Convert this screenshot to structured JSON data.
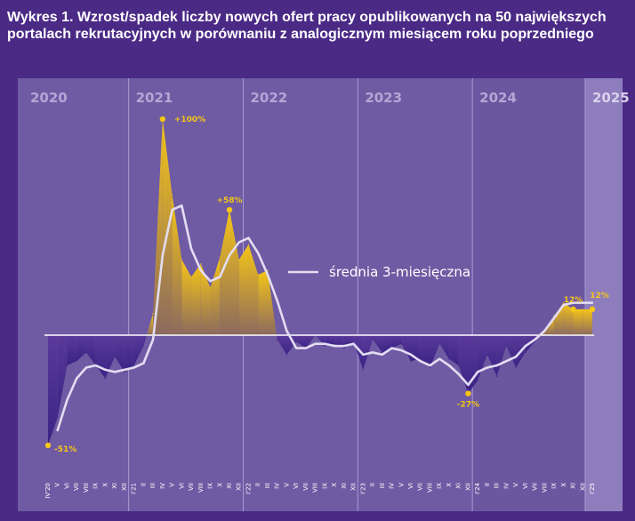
{
  "title": "Wykres 1. Wzrost/spadek liczby nowych ofert pracy opublikowanych na 50 największych portalach rekrutacyjnych w porównaniu z analogicznym miesiącem roku poprzedniego",
  "colors": {
    "background": "#4b2a86",
    "panel": "#6e5ba3",
    "panel_2025": "#8e7dbd",
    "year_text": "#b3a6d6",
    "year_text_dark": "#d9d2ec",
    "positive_fill": "#f5c518",
    "negative_fill": "#3a2384",
    "average_line": "#e3ddf2",
    "marker": "#f5c518"
  },
  "chart_data": {
    "type": "area",
    "years": [
      "2020",
      "2021",
      "2022",
      "2023",
      "2024",
      "2025"
    ],
    "x": [
      "IV'20",
      "V",
      "VI",
      "VII",
      "VIII",
      "IX",
      "X",
      "XI",
      "XII",
      "I'21",
      "II",
      "III",
      "IV",
      "V",
      "VI",
      "VII",
      "VIII",
      "IX",
      "X",
      "XI",
      "XII",
      "I'22",
      "II",
      "III",
      "IV",
      "V",
      "VI",
      "VII",
      "VIII",
      "IX",
      "X",
      "XI",
      "XII",
      "I'23",
      "II",
      "III",
      "IV",
      "V",
      "VI",
      "VII",
      "VIII",
      "IX",
      "X",
      "XI",
      "XII",
      "I'24",
      "II",
      "III",
      "IV",
      "V",
      "VI",
      "VII",
      "VIII",
      "IX",
      "X",
      "XI",
      "XII",
      "I'25"
    ],
    "series": [
      {
        "name": "",
        "values": [
          -51,
          -38,
          -14,
          -12,
          -8,
          -14,
          -20,
          -10,
          -17,
          -14,
          -5,
          10,
          100,
          65,
          35,
          27,
          33,
          22,
          36,
          58,
          35,
          42,
          28,
          30,
          -2,
          -9,
          -3,
          -6,
          0,
          -5,
          -4,
          -6,
          -3,
          -16,
          -2,
          -8,
          -6,
          -4,
          -12,
          -11,
          -15,
          -4,
          -11,
          -14,
          -27,
          -21,
          -9,
          -19,
          -5,
          -15,
          -8,
          -3,
          2,
          9,
          15,
          12,
          12,
          12
        ]
      },
      {
        "name": "średnia 3-miesięczna",
        "values": [
          null,
          -44,
          -30,
          -20,
          -15,
          -14,
          -16,
          -17,
          -16,
          -15,
          -13,
          -2,
          37,
          58,
          60,
          40,
          30,
          25,
          27,
          37,
          43,
          45,
          38,
          28,
          16,
          2,
          -6,
          -6,
          -4,
          -4,
          -5,
          -5,
          -4,
          -9,
          -8,
          -9,
          -6,
          -7,
          -9,
          -12,
          -14,
          -11,
          -14,
          -18,
          -23,
          -17,
          -15,
          -14,
          -12,
          -10,
          -5,
          -2,
          2,
          8,
          14,
          15,
          15,
          15
        ]
      }
    ],
    "annotations": [
      {
        "label": "-51%",
        "index": 0,
        "value": -51
      },
      {
        "label": "+100%",
        "index": 12,
        "value": 100
      },
      {
        "label": "+58%",
        "index": 19,
        "value": 58
      },
      {
        "label": "-27%",
        "index": 44,
        "value": -27
      },
      {
        "label": "12%",
        "index": 55,
        "value": 12
      },
      {
        "label": "12%",
        "index": 57,
        "value": 12
      }
    ],
    "legend": "right of the 2022 peak, next to the average line",
    "grid": false
  }
}
